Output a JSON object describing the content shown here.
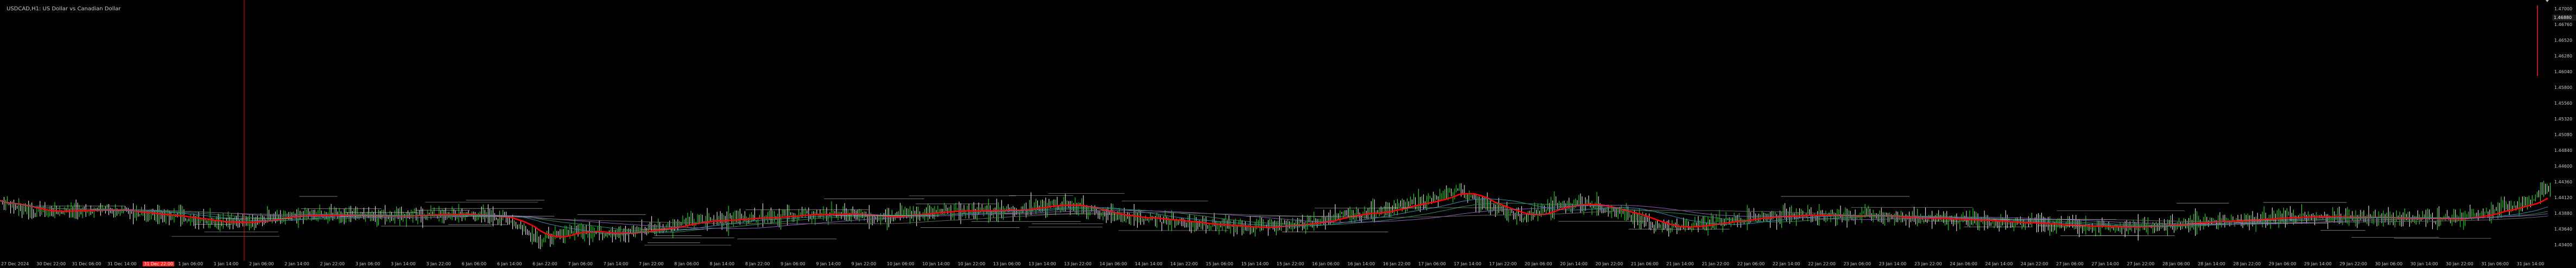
{
  "window": {
    "title": "USDCAD,H1: US Dollar vs Canadian Dollar"
  },
  "colors": {
    "background": "#000000",
    "bull_candle": "#00ff00",
    "bear_candle": "#ffffff",
    "fast_ma": "#ff0000",
    "grid_line": "#202020",
    "period_separator": "#ff0000",
    "level_line": "#c8c8c8"
  },
  "price_scale": {
    "labels": [
      "1.47000",
      "1.46760",
      "1.46520",
      "1.46280",
      "1.46040",
      "1.45800",
      "1.45560",
      "1.45320",
      "1.45080",
      "1.44840",
      "1.44600",
      "1.44360",
      "1.44120",
      "1.43880",
      "1.43640",
      "1.43400"
    ],
    "current_price": "1.46880"
  },
  "time_scale": {
    "labels": [
      "27 Dec 2024",
      "30 Dec 22:00",
      "31 Dec 06:00",
      "31 Dec 14:00",
      "31 Dec 22:00",
      "1 Jan 06:00",
      "1 Jan 14:00",
      "2 Jan 06:00",
      "2 Jan 14:00",
      "2 Jan 22:00",
      "3 Jan 06:00",
      "3 Jan 14:00",
      "3 Jan 22:00",
      "6 Jan 06:00",
      "6 Jan 14:00",
      "6 Jan 22:00",
      "7 Jan 06:00",
      "7 Jan 14:00",
      "7 Jan 22:00",
      "8 Jan 06:00",
      "8 Jan 14:00",
      "8 Jan 22:00",
      "9 Jan 06:00",
      "9 Jan 14:00",
      "9 Jan 22:00",
      "10 Jan 06:00",
      "10 Jan 14:00",
      "10 Jan 22:00",
      "13 Jan 06:00",
      "13 Jan 14:00",
      "13 Jan 22:00",
      "14 Jan 06:00",
      "14 Jan 14:00",
      "14 Jan 22:00",
      "15 Jan 06:00",
      "15 Jan 14:00",
      "15 Jan 22:00",
      "16 Jan 06:00",
      "16 Jan 14:00",
      "16 Jan 22:00",
      "17 Jan 06:00",
      "17 Jan 14:00",
      "17 Jan 22:00",
      "20 Jan 06:00",
      "20 Jan 14:00",
      "20 Jan 22:00",
      "21 Jan 06:00",
      "21 Jan 14:00",
      "21 Jan 22:00",
      "22 Jan 06:00",
      "22 Jan 14:00",
      "22 Jan 22:00",
      "23 Jan 06:00",
      "23 Jan 14:00",
      "23 Jan 22:00",
      "24 Jan 06:00",
      "24 Jan 14:00",
      "24 Jan 22:00",
      "27 Jan 06:00",
      "27 Jan 14:00",
      "27 Jan 22:00",
      "28 Jan 06:00",
      "28 Jan 14:00",
      "28 Jan 22:00",
      "29 Jan 06:00",
      "29 Jan 14:00",
      "29 Jan 22:00",
      "30 Jan 06:00",
      "30 Jan 14:00",
      "30 Jan 22:00",
      "31 Jan 06:00",
      "31 Jan 14:00"
    ],
    "highlighted_index": 4
  },
  "chart_data": {
    "type": "candlestick",
    "symbol": "USDCAD",
    "timeframe": "H1",
    "ylim": [
      1.433,
      1.471
    ],
    "grid": false,
    "period_separators": [
      "31 Dec 22:00"
    ],
    "close_path": [
      [
        0,
        1.4418
      ],
      [
        20,
        1.4402
      ],
      [
        60,
        1.4405
      ],
      [
        100,
        1.4396
      ],
      [
        140,
        1.4386
      ],
      [
        160,
        1.439
      ],
      [
        180,
        1.4395
      ],
      [
        200,
        1.4397
      ],
      [
        240,
        1.4396
      ],
      [
        280,
        1.4398
      ],
      [
        310,
        1.4392
      ],
      [
        330,
        1.436
      ],
      [
        350,
        1.4375
      ],
      [
        380,
        1.437
      ],
      [
        400,
        1.4378
      ],
      [
        420,
        1.4386
      ],
      [
        460,
        1.4394
      ],
      [
        500,
        1.4398
      ],
      [
        540,
        1.4396
      ],
      [
        580,
        1.4402
      ],
      [
        620,
        1.4405
      ],
      [
        640,
        1.4413
      ],
      [
        660,
        1.4408
      ],
      [
        680,
        1.4395
      ],
      [
        720,
        1.4388
      ],
      [
        760,
        1.4378
      ],
      [
        800,
        1.4385
      ],
      [
        820,
        1.4396
      ],
      [
        840,
        1.4402
      ],
      [
        860,
        1.4412
      ],
      [
        880,
        1.4422
      ],
      [
        890,
        1.4435
      ],
      [
        900,
        1.442
      ],
      [
        930,
        1.4392
      ],
      [
        950,
        1.441
      ],
      [
        970,
        1.4415
      ],
      [
        1000,
        1.4392
      ],
      [
        1020,
        1.4378
      ],
      [
        1040,
        1.4382
      ],
      [
        1060,
        1.439
      ],
      [
        1100,
        1.4398
      ],
      [
        1140,
        1.4396
      ],
      [
        1180,
        1.4392
      ],
      [
        1220,
        1.4388
      ],
      [
        1260,
        1.4382
      ],
      [
        1300,
        1.4379
      ],
      [
        1340,
        1.4386
      ],
      [
        1380,
        1.4392
      ],
      [
        1420,
        1.4394
      ],
      [
        1460,
        1.4393
      ],
      [
        1500,
        1.4391
      ],
      [
        1520,
        1.4398
      ],
      [
        1530,
        1.4408
      ],
      [
        1548,
        1.4416
      ],
      [
        1555,
        1.4434
      ]
    ],
    "moving_averages": [
      {
        "color": "#ff0000",
        "role": "fast"
      },
      {
        "color": "#3a8fb0",
        "role": "medium"
      },
      {
        "color": "#2e8b57",
        "role": "medium"
      },
      {
        "color": "#8a5bb8",
        "role": "slow"
      },
      {
        "color": "#666666",
        "role": "slow"
      }
    ]
  }
}
